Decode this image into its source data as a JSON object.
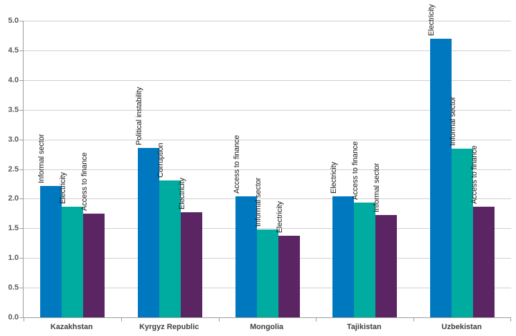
{
  "chart_data": {
    "type": "bar",
    "grid": true,
    "legend": "none",
    "y_axis": {
      "min": 0.0,
      "max": 5.0,
      "step": 0.5,
      "tick_labels": [
        "0.0",
        "0.5",
        "1.0",
        "1.5",
        "2.0",
        "2.5",
        "3.0",
        "3.5",
        "4.0",
        "4.5",
        "5.0"
      ]
    },
    "categories": [
      "Kazakhstan",
      "Kyrgyz Republic",
      "Mongolia",
      "Tajikistan",
      "Uzbekistan"
    ],
    "groups": [
      {
        "country": "Kazakhstan",
        "bars": [
          {
            "label": "Informal sector",
            "value": 2.21
          },
          {
            "label": "Electricity",
            "value": 1.87
          },
          {
            "label": "Access to finance",
            "value": 1.75
          }
        ]
      },
      {
        "country": "Kyrgyz Republic",
        "bars": [
          {
            "label": "Political instability",
            "value": 2.86
          },
          {
            "label": "Corruption",
            "value": 2.31
          },
          {
            "label": "Electricity",
            "value": 1.77
          }
        ]
      },
      {
        "country": "Mongolia",
        "bars": [
          {
            "label": "Access to finance",
            "value": 2.04
          },
          {
            "label": "Informal sector",
            "value": 1.48
          },
          {
            "label": "Electricity",
            "value": 1.37
          }
        ]
      },
      {
        "country": "Tajikistan",
        "bars": [
          {
            "label": "Electricity",
            "value": 2.04
          },
          {
            "label": "Access to finance",
            "value": 1.94
          },
          {
            "label": "Informal sector",
            "value": 1.73
          }
        ]
      },
      {
        "country": "Uzbekistan",
        "bars": [
          {
            "label": "Electricity",
            "value": 4.7
          },
          {
            "label": "Informal sector",
            "value": 2.84
          },
          {
            "label": "Access to finance",
            "value": 1.86
          }
        ]
      }
    ],
    "bar_colors": [
      "#0078C0",
      "#00ACA0",
      "#5B2462"
    ],
    "style_colors": {
      "gridline": "#cfcfcf",
      "axis_line": "#9c9c9c",
      "y_tick_label": "#595959",
      "category_label": "#404040",
      "bar_label": "#1a1a1a",
      "background": "#ffffff"
    }
  }
}
